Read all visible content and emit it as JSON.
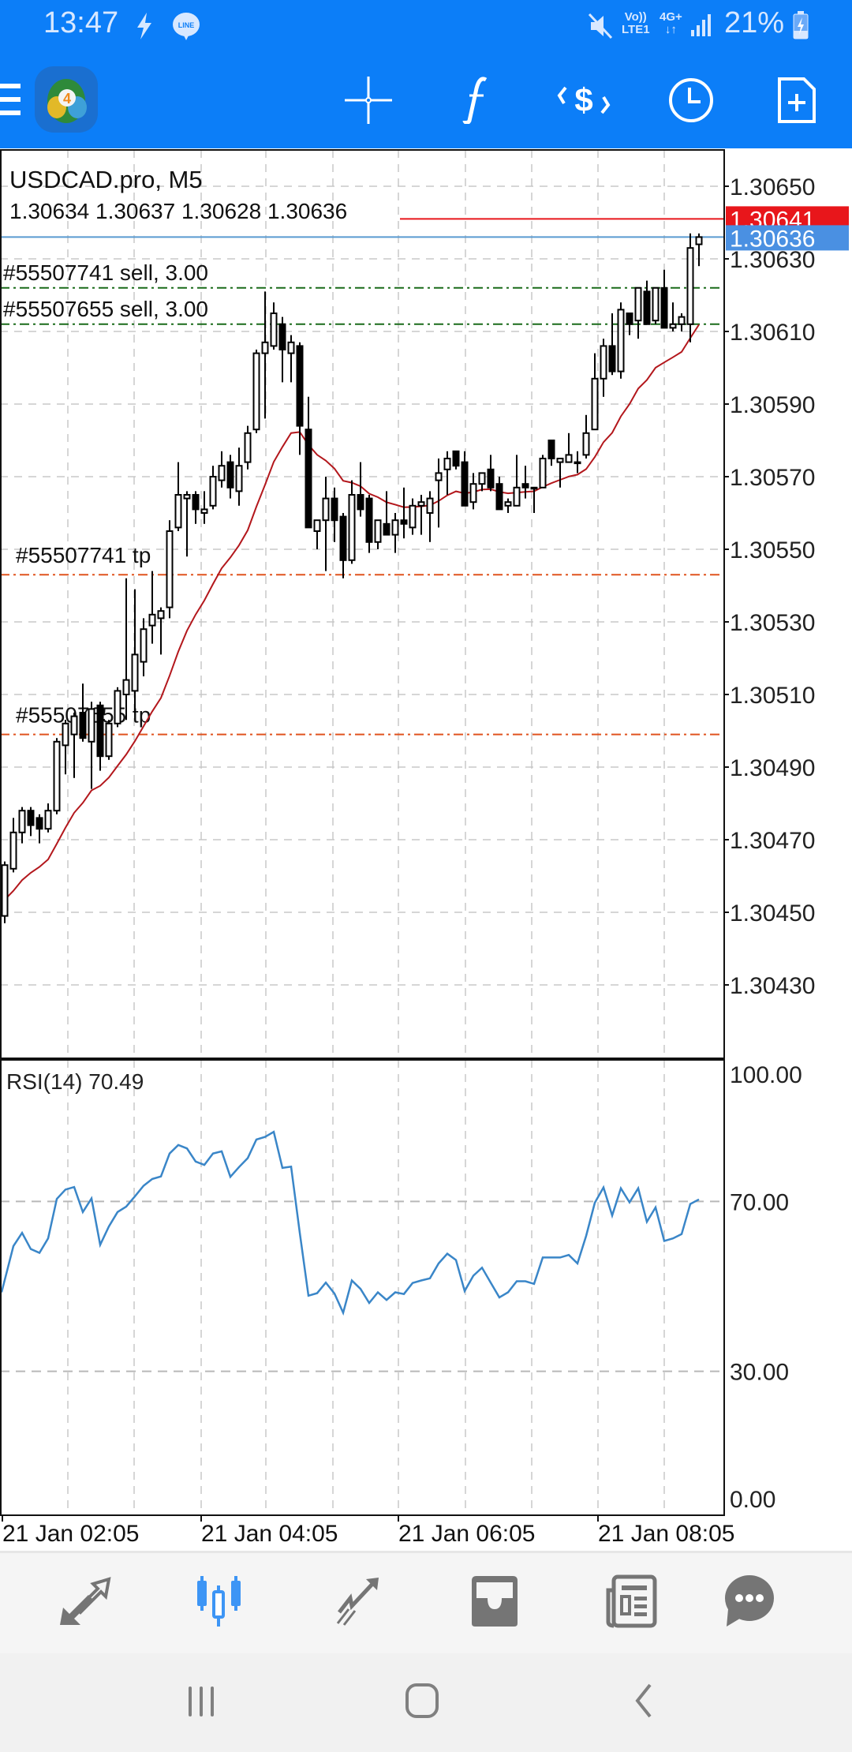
{
  "status_bar": {
    "time": "13:47",
    "volte": "Vo))",
    "lte": "LTE1",
    "network": "4G+",
    "battery": "21%"
  },
  "toolbar": {
    "icons": [
      "menu-icon",
      "app-logo",
      "crosshair-icon",
      "indicators-icon",
      "trade-icon",
      "timeframe-icon",
      "new-order-icon"
    ]
  },
  "colors": {
    "brand": "#0c7ef8",
    "ask": "#e8161b",
    "bid": "#4a90e2",
    "order_line": "#1a6b1a",
    "tp_line": "#e0531f",
    "ma": "#b3171c",
    "rsi": "#3a86c8",
    "nav_active": "#3d95f5",
    "nav_inactive": "#757575"
  },
  "chart_data": {
    "type": "candlestick",
    "title": "USDCAD.pro, M5",
    "ohlc_text": "1.30634 1.30637 1.30628 1.30636",
    "ask": {
      "label": "1.30641",
      "price": 1.30641
    },
    "bid": {
      "label": "1.30636",
      "price": 1.30636
    },
    "orders": [
      {
        "label": "#55507741 sell, 3.00",
        "price": 1.30622
      },
      {
        "label": "#55507655 sell, 3.00",
        "price": 1.30612
      }
    ],
    "take_profits": [
      {
        "label": "#55507741 tp",
        "price": 1.30543
      },
      {
        "label": "#55507655 tp",
        "price": 1.30499
      }
    ],
    "y_ticks": [
      "1.30650",
      "1.30630",
      "1.30610",
      "1.30590",
      "1.30570",
      "1.30550",
      "1.30530",
      "1.30510",
      "1.30490",
      "1.30470",
      "1.30450",
      "1.30430"
    ],
    "x_ticks": [
      "21 Jan 02:05",
      "21 Jan 04:05",
      "21 Jan 06:05",
      "21 Jan 08:05"
    ],
    "ohlc": [
      [
        1.30449,
        1.30464,
        1.30447,
        1.30463
      ],
      [
        1.30462,
        1.30476,
        1.30461,
        1.30472
      ],
      [
        1.30472,
        1.30479,
        1.30469,
        1.30478
      ],
      [
        1.30478,
        1.30479,
        1.30471,
        1.30474
      ],
      [
        1.30476,
        1.30477,
        1.30469,
        1.30473
      ],
      [
        1.30473,
        1.3048,
        1.30472,
        1.30478
      ],
      [
        1.30478,
        1.30498,
        1.30477,
        1.30497
      ],
      [
        1.30496,
        1.30503,
        1.30488,
        1.30502
      ],
      [
        1.30499,
        1.30505,
        1.30487,
        1.30504
      ],
      [
        1.30505,
        1.30513,
        1.30497,
        1.30498
      ],
      [
        1.30497,
        1.30508,
        1.30484,
        1.30506
      ],
      [
        1.30507,
        1.30508,
        1.30489,
        1.30493
      ],
      [
        1.30493,
        1.30503,
        1.30492,
        1.30502
      ],
      [
        1.30502,
        1.30512,
        1.30501,
        1.30511
      ],
      [
        1.3051,
        1.30542,
        1.30503,
        1.30514
      ],
      [
        1.30511,
        1.30539,
        1.30505,
        1.30521
      ],
      [
        1.30519,
        1.30531,
        1.30515,
        1.30528
      ],
      [
        1.30529,
        1.30544,
        1.30524,
        1.30532
      ],
      [
        1.30531,
        1.30534,
        1.30521,
        1.30533
      ],
      [
        1.30534,
        1.30558,
        1.30531,
        1.30555
      ],
      [
        1.30556,
        1.30574,
        1.30555,
        1.30565
      ],
      [
        1.30564,
        1.30566,
        1.30548,
        1.30565
      ],
      [
        1.30565,
        1.30566,
        1.30557,
        1.30561
      ],
      [
        1.3056,
        1.30566,
        1.30557,
        1.30561
      ],
      [
        1.30562,
        1.30573,
        1.30561,
        1.3057
      ],
      [
        1.30569,
        1.30577,
        1.30567,
        1.30573
      ],
      [
        1.30574,
        1.30576,
        1.30564,
        1.30567
      ],
      [
        1.30566,
        1.30578,
        1.30562,
        1.30573
      ],
      [
        1.30574,
        1.30584,
        1.30572,
        1.30582
      ],
      [
        1.30583,
        1.30605,
        1.30582,
        1.30604
      ],
      [
        1.30604,
        1.30621,
        1.30586,
        1.30607
      ],
      [
        1.30606,
        1.30618,
        1.30605,
        1.30615
      ],
      [
        1.30612,
        1.30614,
        1.30596,
        1.30605
      ],
      [
        1.30604,
        1.30609,
        1.30596,
        1.30607
      ],
      [
        1.30606,
        1.30607,
        1.30576,
        1.30584
      ],
      [
        1.30583,
        1.30592,
        1.30556,
        1.30556
      ],
      [
        1.30555,
        1.30558,
        1.3055,
        1.30558
      ],
      [
        1.30558,
        1.3057,
        1.30544,
        1.30564
      ],
      [
        1.30564,
        1.30567,
        1.30552,
        1.30558
      ],
      [
        1.30559,
        1.3056,
        1.30542,
        1.30547
      ],
      [
        1.30547,
        1.30569,
        1.30546,
        1.30565
      ],
      [
        1.30565,
        1.30574,
        1.30559,
        1.30561
      ],
      [
        1.30564,
        1.30565,
        1.30549,
        1.30552
      ],
      [
        1.30552,
        1.30558,
        1.3055,
        1.30558
      ],
      [
        1.30557,
        1.30566,
        1.30554,
        1.30554
      ],
      [
        1.30554,
        1.3056,
        1.30549,
        1.30558
      ],
      [
        1.30558,
        1.30567,
        1.30553,
        1.30557
      ],
      [
        1.30556,
        1.30564,
        1.30554,
        1.30562
      ],
      [
        1.30562,
        1.30565,
        1.30554,
        1.30563
      ],
      [
        1.3056,
        1.30566,
        1.30552,
        1.30564
      ],
      [
        1.30569,
        1.30575,
        1.30556,
        1.30571
      ],
      [
        1.30572,
        1.30577,
        1.30565,
        1.30575
      ],
      [
        1.30577,
        1.30577,
        1.30572,
        1.30573
      ],
      [
        1.30574,
        1.30577,
        1.30562,
        1.30562
      ],
      [
        1.30563,
        1.30571,
        1.30561,
        1.30568
      ],
      [
        1.30568,
        1.30571,
        1.30566,
        1.30571
      ],
      [
        1.30572,
        1.30576,
        1.30566,
        1.30567
      ],
      [
        1.30568,
        1.3057,
        1.30561,
        1.30561
      ],
      [
        1.30562,
        1.30564,
        1.3056,
        1.30563
      ],
      [
        1.30562,
        1.30576,
        1.30562,
        1.30567
      ],
      [
        1.30568,
        1.30573,
        1.30564,
        1.30567
      ],
      [
        1.30567,
        1.30567,
        1.3056,
        1.30567
      ],
      [
        1.30567,
        1.30576,
        1.30567,
        1.30575
      ],
      [
        1.3058,
        1.3058,
        1.30573,
        1.30575
      ],
      [
        1.30574,
        1.30575,
        1.30567,
        1.30575
      ],
      [
        1.30574,
        1.30582,
        1.30574,
        1.30576
      ],
      [
        1.30574,
        1.30577,
        1.30571,
        1.30574
      ],
      [
        1.30576,
        1.30587,
        1.30575,
        1.30582
      ],
      [
        1.30583,
        1.30604,
        1.30583,
        1.30597
      ],
      [
        1.30597,
        1.30608,
        1.30592,
        1.30606
      ],
      [
        1.30606,
        1.30615,
        1.30598,
        1.30599
      ],
      [
        1.30599,
        1.30618,
        1.30597,
        1.30616
      ],
      [
        1.30615,
        1.30615,
        1.30609,
        1.30612
      ],
      [
        1.30613,
        1.30622,
        1.30608,
        1.30622
      ],
      [
        1.30621,
        1.30624,
        1.30612,
        1.30612
      ],
      [
        1.30613,
        1.30622,
        1.30612,
        1.30622
      ],
      [
        1.30622,
        1.30627,
        1.30611,
        1.30611
      ],
      [
        1.30611,
        1.30618,
        1.3061,
        1.30612
      ],
      [
        1.30612,
        1.30615,
        1.3061,
        1.30614
      ],
      [
        1.30612,
        1.30637,
        1.30607,
        1.30633
      ],
      [
        1.30634,
        1.30637,
        1.30628,
        1.30636
      ]
    ],
    "ma_seed": 1.30452,
    "rsi": {
      "label": "RSI(14) 70.49",
      "ticks": [
        {
          "label": "100.00",
          "value": 100
        },
        {
          "label": "70.00",
          "value": 70
        },
        {
          "label": "30.00",
          "value": 30
        },
        {
          "label": "0.00",
          "value": 0
        }
      ],
      "values": [
        48.6,
        59.5,
        62.6,
        58.8,
        57.9,
        61.3,
        70.6,
        72.8,
        73.4,
        67.5,
        70.7,
        59.8,
        64.1,
        67.5,
        68.8,
        71.2,
        73.7,
        75.3,
        75.9,
        81.3,
        83.3,
        82.5,
        79.4,
        78.6,
        81.3,
        81.8,
        75.8,
        78.1,
        80.2,
        84.6,
        85.2,
        86.4,
        77.9,
        78.2,
        62.6,
        47.8,
        48.4,
        50.9,
        48.3,
        43.8,
        51.4,
        49.4,
        46.1,
        48.6,
        46.8,
        48.6,
        48.2,
        50.8,
        51.4,
        51.9,
        55.4,
        57.7,
        56.2,
        48.9,
        52.5,
        54.4,
        50.9,
        47.4,
        48.6,
        51.2,
        51.2,
        50.6,
        56.8,
        56.8,
        56.8,
        57.4,
        55.4,
        61.9,
        69.7,
        73.3,
        66.7,
        73.1,
        69.8,
        73.1,
        65.2,
        68.6,
        60.7,
        61.3,
        62.3,
        69.4,
        70.49
      ]
    }
  },
  "bottom_nav": {
    "items": [
      "quotes",
      "chart",
      "trade",
      "history",
      "news",
      "messages"
    ],
    "active": "chart"
  }
}
